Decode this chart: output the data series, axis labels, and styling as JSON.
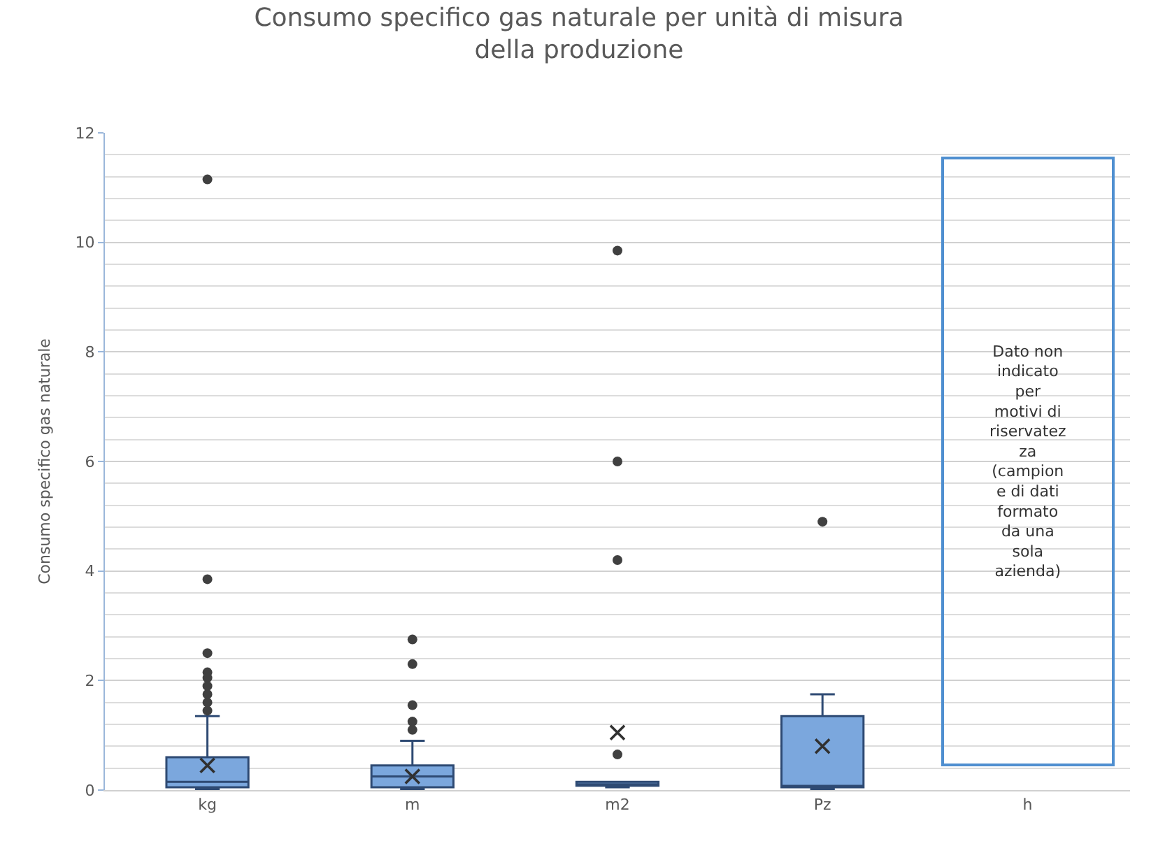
{
  "chart_data": {
    "type": "box",
    "title": "Consumo specifico gas naturale per unità di misura della produzione",
    "ylabel": "Consumo specifico gas naturale",
    "categories": [
      "kg",
      "m",
      "m2",
      "Pz",
      "h"
    ],
    "boxes": [
      {
        "low": 0.02,
        "q1": 0.05,
        "median": 0.15,
        "q3": 0.6,
        "high": 1.35,
        "mean": 0.45,
        "outliers": [
          11.15,
          3.85,
          2.5,
          2.15,
          2.05,
          1.9,
          1.75,
          1.6,
          1.45
        ]
      },
      {
        "low": 0.02,
        "q1": 0.05,
        "median": 0.25,
        "q3": 0.45,
        "high": 0.9,
        "mean": 0.25,
        "outliers": [
          2.75,
          2.3,
          1.55,
          1.25,
          1.1
        ]
      },
      {
        "low": 0.05,
        "q1": 0.08,
        "median": 0.1,
        "q3": 0.15,
        "high": 0.15,
        "mean": 1.05,
        "outliers": [
          9.85,
          6.0,
          4.2,
          0.65
        ]
      },
      {
        "low": 0.02,
        "q1": 0.05,
        "median": 0.05,
        "q3": 1.35,
        "high": 1.75,
        "mean": 0.8,
        "outliers": [
          4.9
        ]
      },
      null
    ],
    "color": "#7ba7dd",
    "ylim": [
      0,
      12
    ],
    "yticks": [
      0,
      2,
      4,
      6,
      8,
      10,
      12
    ],
    "grid": true,
    "annotations": [
      "Dato non\nindicato\nper\nmotivi di\nriservatez\nza\n(campion\ne di dati\nformato\nda una\nsola\nazienda)"
    ]
  }
}
